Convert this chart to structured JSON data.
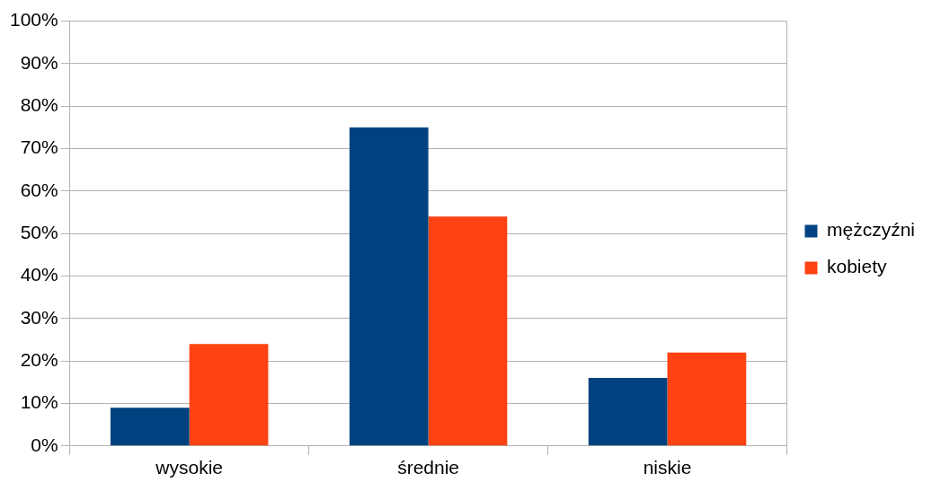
{
  "chart_data": {
    "type": "bar",
    "categories": [
      "wysokie",
      "średnie",
      "niskie"
    ],
    "series": [
      {
        "name": "mężczyźni",
        "color": "#00427f",
        "values": [
          9,
          75,
          16
        ]
      },
      {
        "name": "kobiety",
        "color": "#ff4212",
        "values": [
          24,
          54,
          22
        ]
      }
    ],
    "ylim": [
      0,
      100
    ],
    "yticks": [
      {
        "value": 0,
        "label": "0%"
      },
      {
        "value": 10,
        "label": "10%"
      },
      {
        "value": 20,
        "label": "20%"
      },
      {
        "value": 30,
        "label": "30%"
      },
      {
        "value": 40,
        "label": "40%"
      },
      {
        "value": 50,
        "label": "50%"
      },
      {
        "value": 60,
        "label": "60%"
      },
      {
        "value": 70,
        "label": "70%"
      },
      {
        "value": 80,
        "label": "80%"
      },
      {
        "value": 90,
        "label": "90%"
      },
      {
        "value": 100,
        "label": "100%"
      }
    ],
    "grid": "y",
    "legend": "right"
  }
}
